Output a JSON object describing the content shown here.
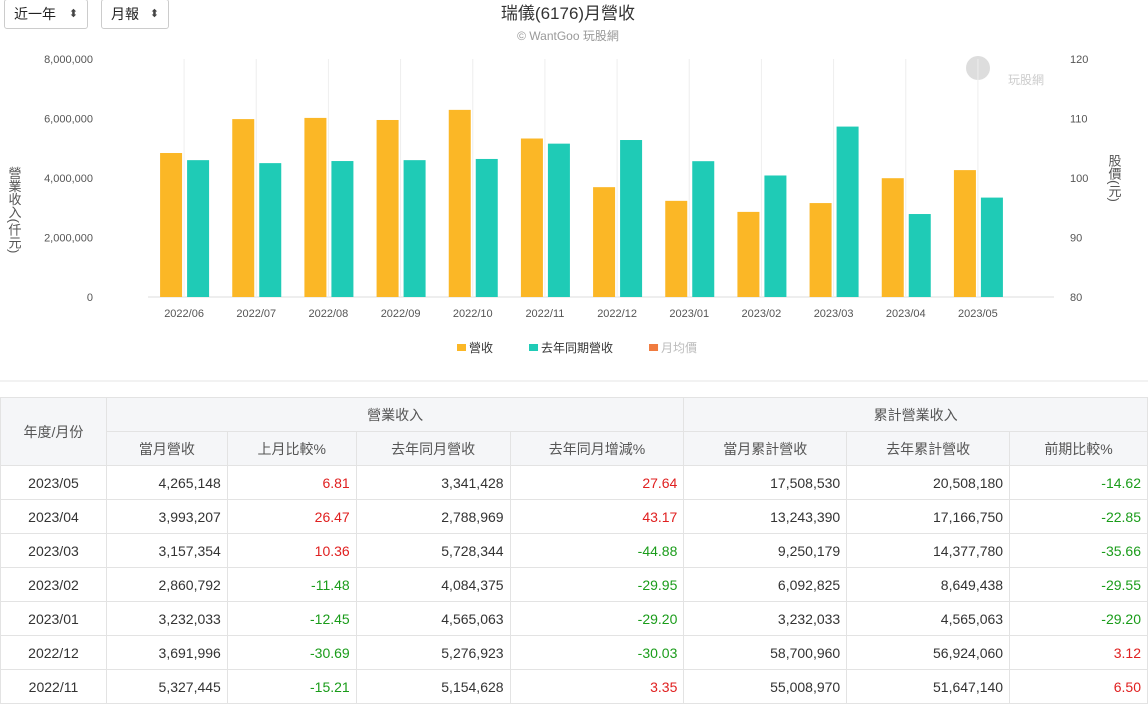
{
  "controls": {
    "range": "近一年",
    "period": "月報"
  },
  "chart_data": {
    "type": "bar",
    "title": "瑞儀(6176)月營收",
    "subtitle": "© WantGoo 玩股網",
    "watermark": "玩股網",
    "y_label": "營業收入(仟元)",
    "y2_label": "股價(元)",
    "categories": [
      "2022/06",
      "2022/07",
      "2022/08",
      "2022/09",
      "2022/10",
      "2022/11",
      "2022/12",
      "2023/01",
      "2023/02",
      "2023/03",
      "2023/04",
      "2023/05"
    ],
    "series": [
      {
        "name": "營收",
        "color": "#fbb726",
        "values": [
          4840000,
          5980000,
          6020000,
          5950000,
          6290000,
          5327445,
          3691996,
          3232033,
          2860792,
          3157354,
          3993207,
          4265148
        ]
      },
      {
        "name": "去年同期營收",
        "color": "#1fcbb6",
        "values": [
          4600000,
          4500000,
          4570000,
          4600000,
          4640000,
          5154628,
          5276923,
          4565063,
          4084375,
          5728344,
          2788969,
          3341428
        ]
      },
      {
        "name": "月均價",
        "color": "#f07b3f",
        "axis": "y2",
        "hidden": true,
        "values": [
          null,
          null,
          null,
          null,
          null,
          null,
          null,
          null,
          null,
          null,
          null,
          null
        ]
      }
    ],
    "ylim": [
      0,
      8000000
    ],
    "yticks": [
      0,
      {
        "value": 2000000,
        "label": "2,000,000"
      },
      {
        "value": 4000000,
        "label": "4,000,000"
      },
      {
        "value": 6000000,
        "label": "6,000,000"
      },
      {
        "value": 8000000,
        "label": "8,000,000"
      }
    ],
    "y2lim": [
      80,
      120
    ],
    "y2ticks": [
      80,
      90,
      100,
      110,
      120
    ],
    "legend": "bottom"
  },
  "table": {
    "first_header": "年度/月份",
    "groups": [
      {
        "label": "營業收入",
        "span": 4
      },
      {
        "label": "累計營業收入",
        "span": 3
      }
    ],
    "columns": [
      "當月營收",
      "上月比較%",
      "去年同月營收",
      "去年同月增減%",
      "當月累計營收",
      "去年累計營收",
      "前期比較%"
    ],
    "rows": [
      [
        "2023/05",
        "4,265,148",
        "6.81",
        "3,341,428",
        "27.64",
        "17,508,530",
        "20,508,180",
        "-14.62"
      ],
      [
        "2023/04",
        "3,993,207",
        "26.47",
        "2,788,969",
        "43.17",
        "13,243,390",
        "17,166,750",
        "-22.85"
      ],
      [
        "2023/03",
        "3,157,354",
        "10.36",
        "5,728,344",
        "-44.88",
        "9,250,179",
        "14,377,780",
        "-35.66"
      ],
      [
        "2023/02",
        "2,860,792",
        "-11.48",
        "4,084,375",
        "-29.95",
        "6,092,825",
        "8,649,438",
        "-29.55"
      ],
      [
        "2023/01",
        "3,232,033",
        "-12.45",
        "4,565,063",
        "-29.20",
        "3,232,033",
        "4,565,063",
        "-29.20"
      ],
      [
        "2022/12",
        "3,691,996",
        "-30.69",
        "5,276,923",
        "-30.03",
        "58,700,960",
        "56,924,060",
        "3.12"
      ],
      [
        "2022/11",
        "5,327,445",
        "-15.21",
        "5,154,628",
        "3.35",
        "55,008,970",
        "51,647,140",
        "6.50"
      ]
    ]
  }
}
